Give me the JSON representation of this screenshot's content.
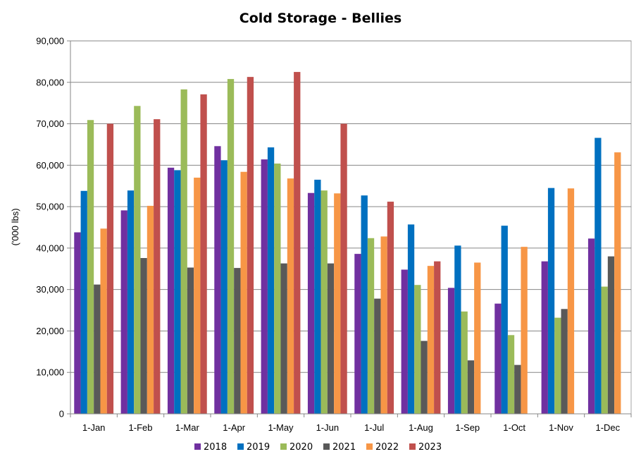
{
  "chart_data": {
    "type": "bar",
    "title": "Cold Storage - Bellies",
    "xlabel": "",
    "ylabel": "('000 lbs)",
    "ylim": [
      0,
      90000
    ],
    "yticks": [
      "0",
      "10,000",
      "20,000",
      "30,000",
      "40,000",
      "50,000",
      "60,000",
      "70,000",
      "80,000",
      "90,000"
    ],
    "categories": [
      "1-Jan",
      "1-Feb",
      "1-Mar",
      "1-Apr",
      "1-May",
      "1-Jun",
      "1-Jul",
      "1-Aug",
      "1-Sep",
      "1-Oct",
      "1-Nov",
      "1-Dec"
    ],
    "grid": true,
    "legend_position": "bottom",
    "series": [
      {
        "name": "2018",
        "color": "#7030a0",
        "values": [
          43800,
          49100,
          59400,
          64600,
          61400,
          53300,
          38600,
          34800,
          30400,
          26600,
          36800,
          42300
        ]
      },
      {
        "name": "2019",
        "color": "#0070c0",
        "values": [
          53800,
          53900,
          58800,
          61200,
          64300,
          56500,
          52700,
          45700,
          40600,
          45400,
          54500,
          66600
        ]
      },
      {
        "name": "2020",
        "color": "#9bbb59",
        "values": [
          70900,
          74300,
          78300,
          80800,
          60400,
          53900,
          42400,
          31100,
          24700,
          19000,
          23200,
          30700
        ]
      },
      {
        "name": "2021",
        "color": "#595959",
        "values": [
          31200,
          37600,
          35300,
          35200,
          36300,
          36300,
          27800,
          17600,
          12900,
          11800,
          25300,
          38000
        ]
      },
      {
        "name": "2022",
        "color": "#f79646",
        "values": [
          44700,
          50200,
          57000,
          58400,
          56800,
          53200,
          42800,
          35700,
          36500,
          40300,
          54400,
          63100
        ]
      },
      {
        "name": "2023",
        "color": "#c0504d",
        "values": [
          70000,
          71100,
          77100,
          81300,
          82500,
          70000,
          51200,
          36800,
          null,
          null,
          null,
          null
        ]
      }
    ]
  }
}
